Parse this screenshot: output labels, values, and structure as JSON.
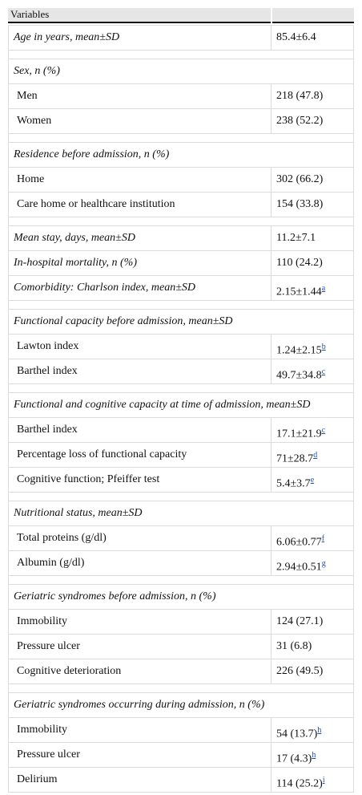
{
  "header": {
    "title": "Variables"
  },
  "groups": [
    {
      "rows": [
        {
          "label": "Age in years, mean±SD",
          "value": "85.4±6.4"
        }
      ]
    },
    {
      "title": "Sex, n (%)",
      "rows": [
        {
          "label": "Men",
          "value": "218 (47.8)"
        },
        {
          "label": "Women",
          "value": "238 (52.2)"
        }
      ]
    },
    {
      "title": "Residence before admission, n (%)",
      "rows": [
        {
          "label": "Home",
          "value": "302 (66.2)"
        },
        {
          "label": "Care home or healthcare institution",
          "value": "154 (33.8)"
        }
      ]
    },
    {
      "rows": [
        {
          "label": "Mean stay, days, mean±SD",
          "value": "11.2±7.1"
        },
        {
          "label": "In-hospital mortality, n (%)",
          "value": "110 (24.2)"
        },
        {
          "label": "Comorbidity: Charlson index, mean±SD",
          "value": "2.15±1.44",
          "note": "a"
        }
      ]
    },
    {
      "title": "Functional capacity before admission, mean±SD",
      "rows": [
        {
          "label": "Lawton index",
          "value": "1.24±2.15",
          "note": "b"
        },
        {
          "label": "Barthel index",
          "value": "49.7±34.8",
          "note": "c"
        }
      ]
    },
    {
      "title": "Functional and cognitive capacity at time of admission, mean±SD",
      "rows": [
        {
          "label": "Barthel index",
          "value": "17.1±21.9",
          "note": "c"
        },
        {
          "label": "Percentage loss of functional capacity",
          "value": "71±28.7",
          "note": "d"
        },
        {
          "label": "Cognitive function; Pfeiffer test",
          "value": "5.4±3.7",
          "note": "e"
        }
      ]
    },
    {
      "title": "Nutritional status, mean±SD",
      "rows": [
        {
          "label": "Total proteins (g/dl)",
          "value": "6.06±0.77",
          "note": "f"
        },
        {
          "label": "Albumin (g/dl)",
          "value": "2.94±0.51",
          "note": "g"
        }
      ]
    },
    {
      "title": "Geriatric syndromes before admission, n (%)",
      "rows": [
        {
          "label": "Immobility",
          "value": "124 (27.1)"
        },
        {
          "label": "Pressure ulcer",
          "value": "31 (6.8)"
        },
        {
          "label": "Cognitive deterioration",
          "value": "226 (49.5)"
        }
      ]
    },
    {
      "title": "Geriatric syndromes occurring during admission, n (%)",
      "rows": [
        {
          "label": "Immobility",
          "value": "54 (13.7)",
          "note": "h"
        },
        {
          "label": "Pressure ulcer",
          "value": "17 (4.3)",
          "note": "h"
        },
        {
          "label": "Delirium",
          "value": "114 (25.2)",
          "note": "i"
        }
      ]
    }
  ]
}
